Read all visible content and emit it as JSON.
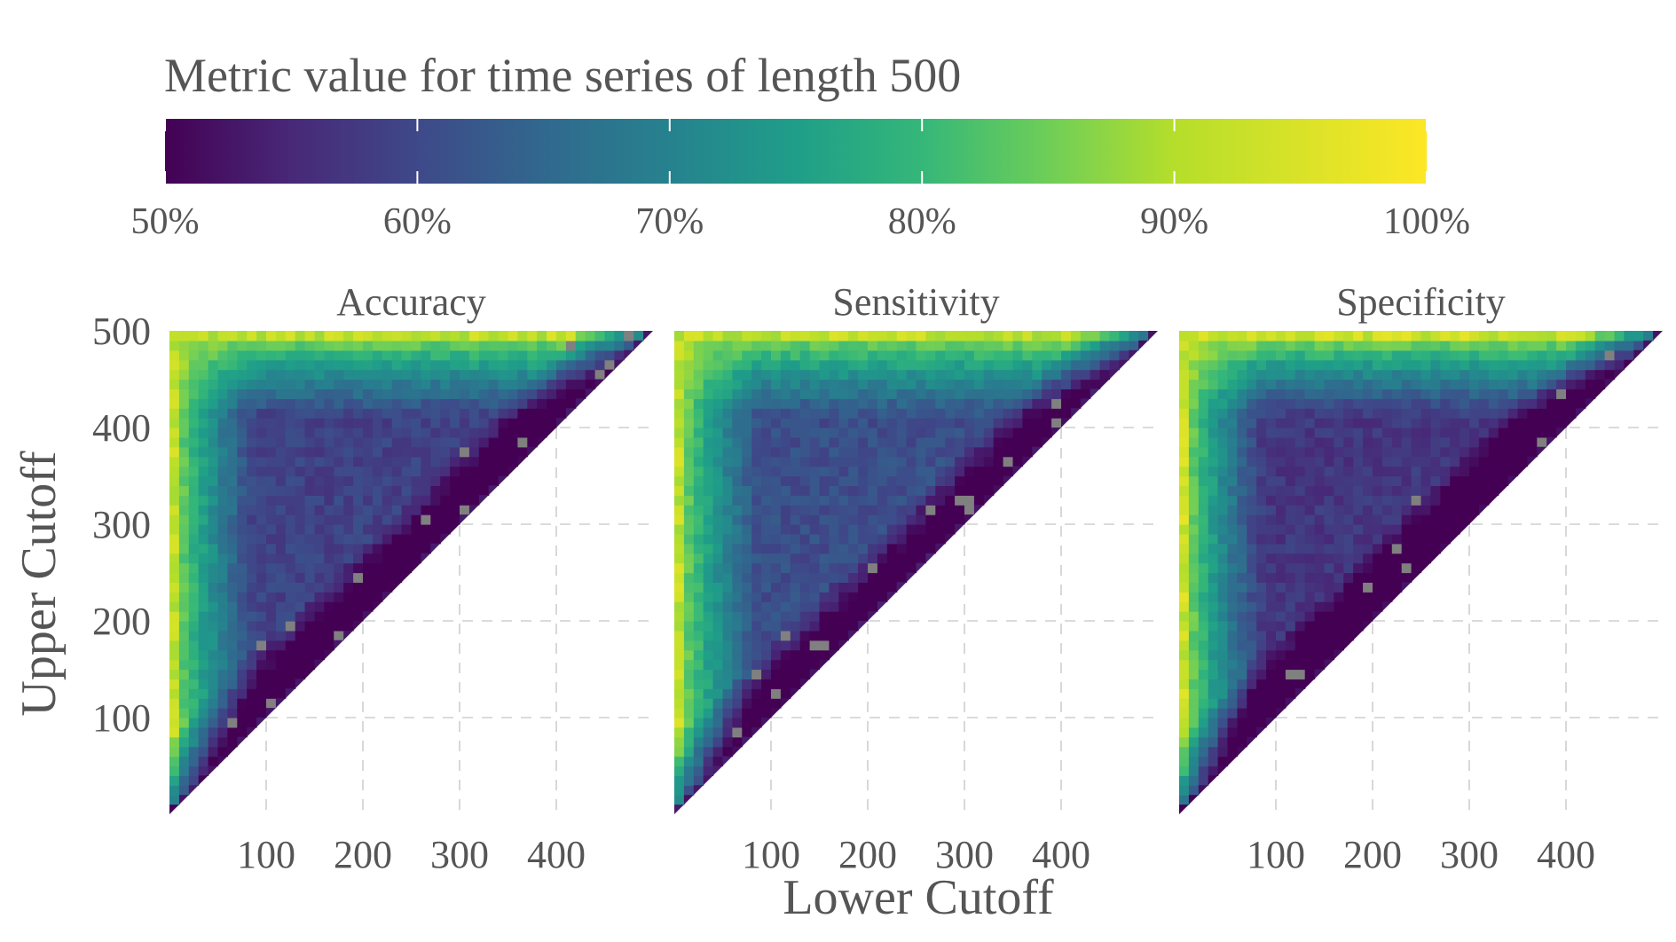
{
  "chart_data": {
    "type": "heatmap",
    "title": "Metric value for time series of length 500",
    "xlabel": "Lower Cutoff",
    "ylabel": "Upper Cutoff",
    "xlim": [
      0,
      500
    ],
    "ylim": [
      0,
      500
    ],
    "x_ticks": [
      "100",
      "200",
      "300",
      "400"
    ],
    "y_ticks": [
      "100",
      "200",
      "300",
      "400",
      "500"
    ],
    "colorbar": {
      "palette": "viridis",
      "range": [
        0.5,
        1.0
      ],
      "ticks": [
        "50%",
        "60%",
        "70%",
        "80%",
        "90%",
        "100%"
      ],
      "colors": [
        "#440154",
        "#3b528b",
        "#21908d",
        "#1fa187",
        "#5dc963",
        "#fde725"
      ]
    },
    "na_color": "#808080",
    "grid": true,
    "facets": [
      {
        "name": "Accuracy",
        "left_edge": 0.9,
        "top_edge": 0.9,
        "corner": 0.95,
        "interior_floor": 0.6,
        "near_diagonal": 0.52
      },
      {
        "name": "Sensitivity",
        "left_edge": 0.91,
        "top_edge": 0.88,
        "corner": 0.95,
        "interior_floor": 0.62,
        "near_diagonal": 0.53
      },
      {
        "name": "Specificity",
        "left_edge": 0.93,
        "top_edge": 0.93,
        "corner": 0.96,
        "interior_floor": 0.58,
        "near_diagonal": 0.51
      }
    ]
  }
}
